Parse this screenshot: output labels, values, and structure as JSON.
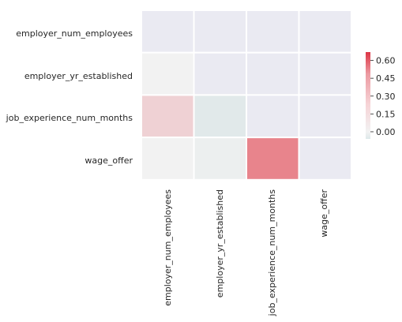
{
  "chart_data": {
    "type": "heatmap",
    "rows": [
      "employer_num_employees",
      "employer_yr_established",
      "job_experience_num_months",
      "wage_offer"
    ],
    "columns": [
      "employer_num_employees",
      "employer_yr_established",
      "job_experience_num_months",
      "wage_offer"
    ],
    "cells": [
      [
        null,
        null,
        null,
        null
      ],
      [
        0.0,
        null,
        null,
        null
      ],
      [
        0.13,
        -0.06,
        null,
        null
      ],
      [
        0.0,
        -0.02,
        0.5,
        null
      ]
    ],
    "colorbar": {
      "ticks": [
        "0.00",
        "0.15",
        "0.30",
        "0.45",
        "0.60"
      ],
      "range": [
        -0.06,
        0.67
      ]
    },
    "masked_upper_triangle": true,
    "colors": {
      "mask": "#eaeaf2",
      "neutral": "#f2f2f2",
      "positive": "#e8848c",
      "negative": "#9fc6c9",
      "cell_border": "#ffffff"
    }
  }
}
